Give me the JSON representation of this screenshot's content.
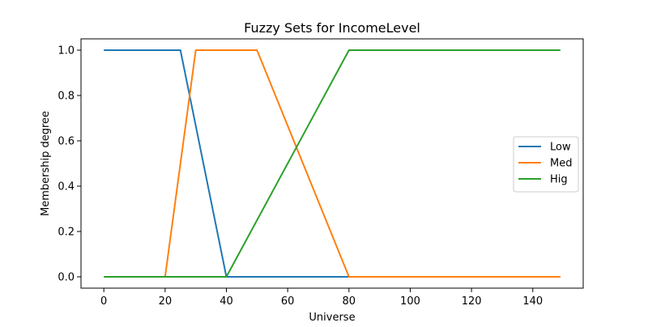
{
  "chart_data": {
    "type": "line",
    "title": "Fuzzy Sets for IncomeLevel",
    "xlabel": "Universe",
    "ylabel": "Membership degree",
    "xlim": [
      -7.45,
      156.45
    ],
    "ylim": [
      -0.05,
      1.05
    ],
    "xticks": [
      0,
      20,
      40,
      60,
      80,
      100,
      120,
      140
    ],
    "xtick_labels": [
      "0",
      "20",
      "40",
      "60",
      "80",
      "100",
      "120",
      "140"
    ],
    "yticks": [
      0.0,
      0.2,
      0.4,
      0.6,
      0.8,
      1.0
    ],
    "ytick_labels": [
      "0.0",
      "0.2",
      "0.4",
      "0.6",
      "0.8",
      "1.0"
    ],
    "grid": false,
    "legend_position": "center-right",
    "series": [
      {
        "name": "Low",
        "color": "#1f77b4",
        "points": [
          [
            0,
            1
          ],
          [
            25,
            1
          ],
          [
            40,
            0
          ],
          [
            149,
            0
          ]
        ]
      },
      {
        "name": "Med",
        "color": "#ff7f0e",
        "points": [
          [
            0,
            0
          ],
          [
            20,
            0
          ],
          [
            30,
            1
          ],
          [
            50,
            1
          ],
          [
            80,
            0
          ],
          [
            149,
            0
          ]
        ]
      },
      {
        "name": "Hig",
        "color": "#2ca02c",
        "points": [
          [
            0,
            0
          ],
          [
            40,
            0
          ],
          [
            80,
            1
          ],
          [
            149,
            1
          ]
        ]
      }
    ]
  }
}
